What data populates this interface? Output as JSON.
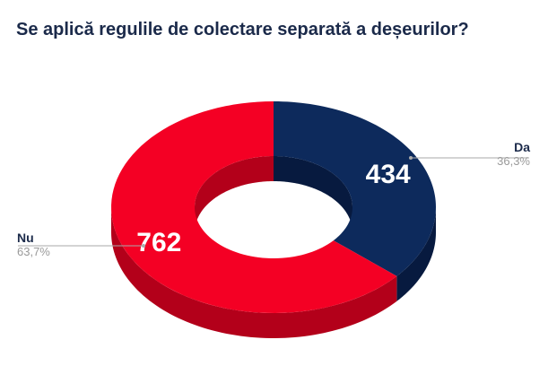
{
  "chart_data": {
    "type": "pie",
    "variant": "3d-donut",
    "title": "Se aplică regulile de colectare separată a deșeurilor?",
    "slices": [
      {
        "label": "Da",
        "value": 434,
        "percent": "36,3%",
        "color": "#0d2a5c",
        "side_color": "#071a3f"
      },
      {
        "label": "Nu",
        "value": 762,
        "percent": "63,7%",
        "color": "#f40024",
        "side_color": "#b3001a"
      }
    ],
    "legend": "leader-lines"
  }
}
